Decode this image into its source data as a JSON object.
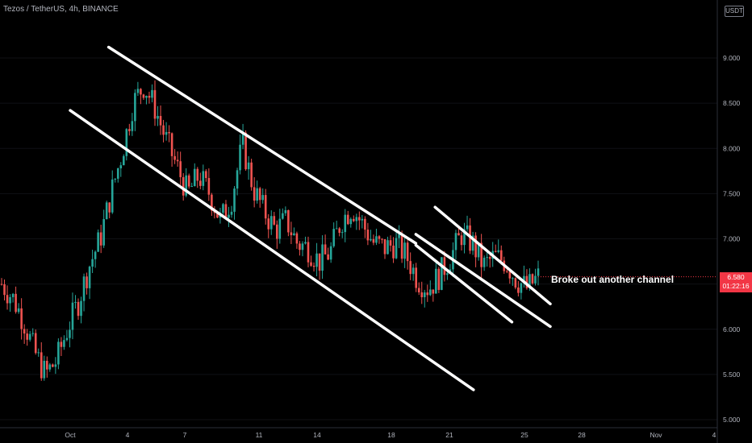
{
  "header": {
    "title": "Tezos / TetherUS, 4h, BINANCE",
    "currency_badge": "USDT"
  },
  "price_label": {
    "value": "6.580",
    "countdown": "01:22:16"
  },
  "colors": {
    "up": "#26a69a",
    "down": "#ef5350",
    "channel": "#ffffff",
    "price_tag": "#f23645",
    "background": "#000000"
  },
  "chart_data": {
    "type": "candlestick",
    "ylim": [
      5.0,
      9.3
    ],
    "y_ticks": [
      "9.000",
      "8.500",
      "8.000",
      "7.500",
      "7.000",
      "6.500",
      "6.000",
      "5.500",
      "5.000"
    ],
    "x_ticks": [
      "Oct",
      "4",
      "7",
      "11",
      "14",
      "18",
      "21",
      "25",
      "28",
      "Nov",
      "4"
    ],
    "annotation": "Broke out another channel",
    "last_price": 6.58,
    "channels": [
      {
        "name": "channel-1-upper",
        "from": {
          "x": "Oct 3",
          "y": 9.12
        },
        "to": {
          "x": "Oct 19",
          "y": 6.95
        }
      },
      {
        "name": "channel-1-lower",
        "from": {
          "x": "Oct 1",
          "y": 8.42
        },
        "to": {
          "x": "Oct 22",
          "y": 5.33
        }
      },
      {
        "name": "channel-2-upper",
        "from": {
          "x": "Oct 20",
          "y": 7.35
        },
        "to": {
          "x": "Oct 26",
          "y": 6.28
        }
      },
      {
        "name": "channel-2-lower",
        "from": {
          "x": "Oct 19",
          "y": 7.05
        },
        "to": {
          "x": "Oct 26",
          "y": 6.03
        }
      },
      {
        "name": "channel-3",
        "from": {
          "x": "Oct 19",
          "y": 6.93
        },
        "to": {
          "x": "Oct 24",
          "y": 6.08
        }
      }
    ],
    "close_path": [
      6.5,
      6.35,
      6.1,
      5.75,
      5.5,
      5.65,
      6.0,
      6.3,
      6.7,
      7.0,
      7.5,
      7.95,
      8.5,
      8.7,
      8.45,
      8.1,
      7.8,
      7.5,
      7.7,
      7.5,
      7.2,
      7.45,
      8.05,
      7.55,
      7.3,
      7.1,
      7.2,
      6.95,
      6.9,
      6.75,
      6.85,
      7.2,
      7.35,
      7.15,
      6.95,
      6.9,
      6.95,
      6.8,
      6.55,
      6.45,
      6.6,
      6.8,
      7.05,
      6.95,
      6.7,
      6.8,
      6.75,
      6.55,
      6.45,
      6.58
    ]
  }
}
